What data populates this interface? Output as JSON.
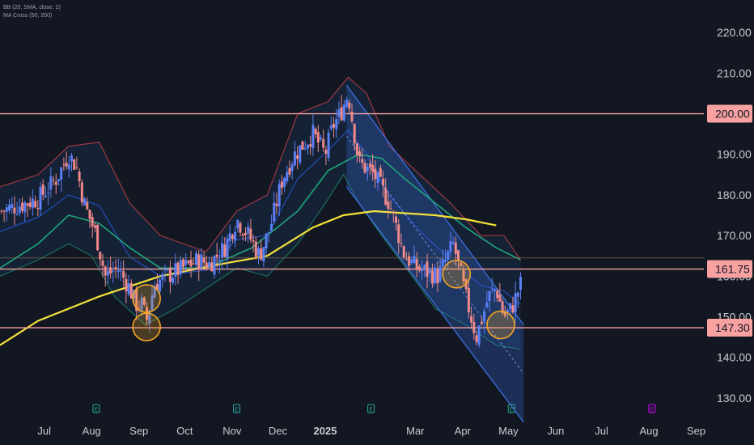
{
  "legend": {
    "line1": "BB (20, SMA, close, 2)",
    "line2": "MA Cross (50, 200)"
  },
  "colors": {
    "background": "#131722",
    "up": "#5b7ff5",
    "down": "#f08a8a",
    "sma50": "#1fa67a",
    "sma200": "#f5e13a",
    "band": "#e0454d",
    "basis": "#2962ff",
    "level": "#f7a1a1",
    "channel": "#3b6fe0",
    "circle": "#f5a623",
    "earnings": "#26a69a",
    "earnings_future": "#d500f9"
  },
  "chart_data": {
    "type": "candlestick",
    "title": "",
    "xlabel": "",
    "ylabel": "",
    "ylim": [
      124,
      228
    ],
    "y_ticks": [
      "220.00",
      "210.00",
      "200.00",
      "190.00",
      "180.00",
      "170.00",
      "160.00",
      "150.00",
      "140.00",
      "130.00"
    ],
    "x_ticks": [
      {
        "label": "Jul",
        "t": 4
      },
      {
        "label": "Aug",
        "t": 35
      },
      {
        "label": "Sep",
        "t": 66
      },
      {
        "label": "Oct",
        "t": 96
      },
      {
        "label": "Nov",
        "t": 127
      },
      {
        "label": "Dec",
        "t": 157
      },
      {
        "label": "2025",
        "t": 188,
        "bold": true
      },
      {
        "label": "Mar",
        "t": 247
      },
      {
        "label": "Apr",
        "t": 278
      },
      {
        "label": "May",
        "t": 308
      },
      {
        "label": "Jun",
        "t": 339
      },
      {
        "label": "Jul",
        "t": 369
      },
      {
        "label": "Aug",
        "t": 400
      },
      {
        "label": "Sep",
        "t": 431
      }
    ],
    "x_domain": [
      -25,
      436
    ],
    "price_levels": [
      {
        "label": "200.00",
        "value": 200.0
      },
      {
        "label": "161.75",
        "value": 161.75
      },
      {
        "label": "147.30",
        "value": 147.3
      }
    ],
    "faint_level": 164.5,
    "channel": {
      "upper": [
        [
          202,
          207
        ],
        [
          318,
          148
        ]
      ],
      "lower": [
        [
          202,
          182
        ],
        [
          318,
          124
        ]
      ]
    },
    "circles": [
      {
        "t": 71,
        "price": 154.5
      },
      {
        "t": 71,
        "price": 147.5
      },
      {
        "t": 274,
        "price": 160.5
      },
      {
        "t": 303,
        "price": 148.0
      }
    ],
    "earnings_markers": [
      {
        "t": 38,
        "label": "E",
        "future": false
      },
      {
        "t": 130,
        "label": "E",
        "future": false
      },
      {
        "t": 218,
        "label": "E",
        "future": false
      },
      {
        "t": 310,
        "label": "E",
        "future": false
      },
      {
        "t": 402,
        "label": "E",
        "future": true
      }
    ],
    "price_path": [
      [
        -25,
        176
      ],
      [
        -8,
        178
      ],
      [
        0,
        179
      ],
      [
        12,
        184
      ],
      [
        20,
        190
      ],
      [
        25,
        187
      ],
      [
        30,
        178
      ],
      [
        38,
        170
      ],
      [
        44,
        160
      ],
      [
        52,
        162
      ],
      [
        60,
        157
      ],
      [
        64,
        153
      ],
      [
        68,
        153
      ],
      [
        71,
        149
      ],
      [
        76,
        158
      ],
      [
        84,
        160
      ],
      [
        95,
        162
      ],
      [
        105,
        164
      ],
      [
        112,
        163
      ],
      [
        122,
        167
      ],
      [
        130,
        174
      ],
      [
        138,
        170
      ],
      [
        145,
        165
      ],
      [
        152,
        172
      ],
      [
        160,
        184
      ],
      [
        168,
        190
      ],
      [
        180,
        195
      ],
      [
        188,
        190
      ],
      [
        193,
        197
      ],
      [
        198,
        200
      ],
      [
        203,
        205
      ],
      [
        210,
        188
      ],
      [
        220,
        185
      ],
      [
        230,
        178
      ],
      [
        240,
        165
      ],
      [
        248,
        162
      ],
      [
        262,
        160
      ],
      [
        272,
        168
      ],
      [
        280,
        155
      ],
      [
        287,
        145
      ],
      [
        295,
        155
      ],
      [
        300,
        157
      ],
      [
        305,
        150
      ],
      [
        310,
        152
      ],
      [
        316,
        158
      ]
    ],
    "sma50_path": [
      [
        -25,
        162
      ],
      [
        0,
        168
      ],
      [
        20,
        175
      ],
      [
        40,
        173
      ],
      [
        60,
        167
      ],
      [
        80,
        162
      ],
      [
        110,
        162
      ],
      [
        140,
        167
      ],
      [
        170,
        176
      ],
      [
        190,
        186
      ],
      [
        210,
        190
      ],
      [
        225,
        189
      ],
      [
        240,
        184
      ],
      [
        260,
        178
      ],
      [
        280,
        172
      ],
      [
        300,
        167
      ],
      [
        316,
        164
      ]
    ],
    "sma200_path": [
      [
        -25,
        143
      ],
      [
        0,
        149
      ],
      [
        40,
        155
      ],
      [
        80,
        160
      ],
      [
        120,
        163
      ],
      [
        150,
        165
      ],
      [
        180,
        172
      ],
      [
        200,
        175
      ],
      [
        220,
        176
      ],
      [
        240,
        175.5
      ],
      [
        260,
        175
      ],
      [
        280,
        174
      ],
      [
        300,
        172.5
      ]
    ],
    "bb_upper_path": [
      [
        -25,
        182
      ],
      [
        0,
        185
      ],
      [
        20,
        192
      ],
      [
        40,
        193
      ],
      [
        60,
        178
      ],
      [
        80,
        170
      ],
      [
        110,
        166
      ],
      [
        130,
        176
      ],
      [
        150,
        180
      ],
      [
        170,
        200
      ],
      [
        190,
        203
      ],
      [
        203,
        209
      ],
      [
        215,
        205
      ],
      [
        230,
        192
      ],
      [
        250,
        185
      ],
      [
        270,
        178
      ],
      [
        290,
        170
      ],
      [
        305,
        170
      ],
      [
        316,
        164
      ]
    ],
    "bb_lower_path": [
      [
        -25,
        160
      ],
      [
        0,
        164
      ],
      [
        20,
        168
      ],
      [
        35,
        165
      ],
      [
        50,
        155
      ],
      [
        70,
        148
      ],
      [
        90,
        152
      ],
      [
        110,
        157
      ],
      [
        130,
        162
      ],
      [
        150,
        160
      ],
      [
        170,
        168
      ],
      [
        190,
        179
      ],
      [
        200,
        185
      ],
      [
        210,
        178
      ],
      [
        225,
        170
      ],
      [
        245,
        160
      ],
      [
        260,
        152
      ],
      [
        280,
        148
      ],
      [
        300,
        143
      ],
      [
        316,
        142
      ]
    ]
  }
}
